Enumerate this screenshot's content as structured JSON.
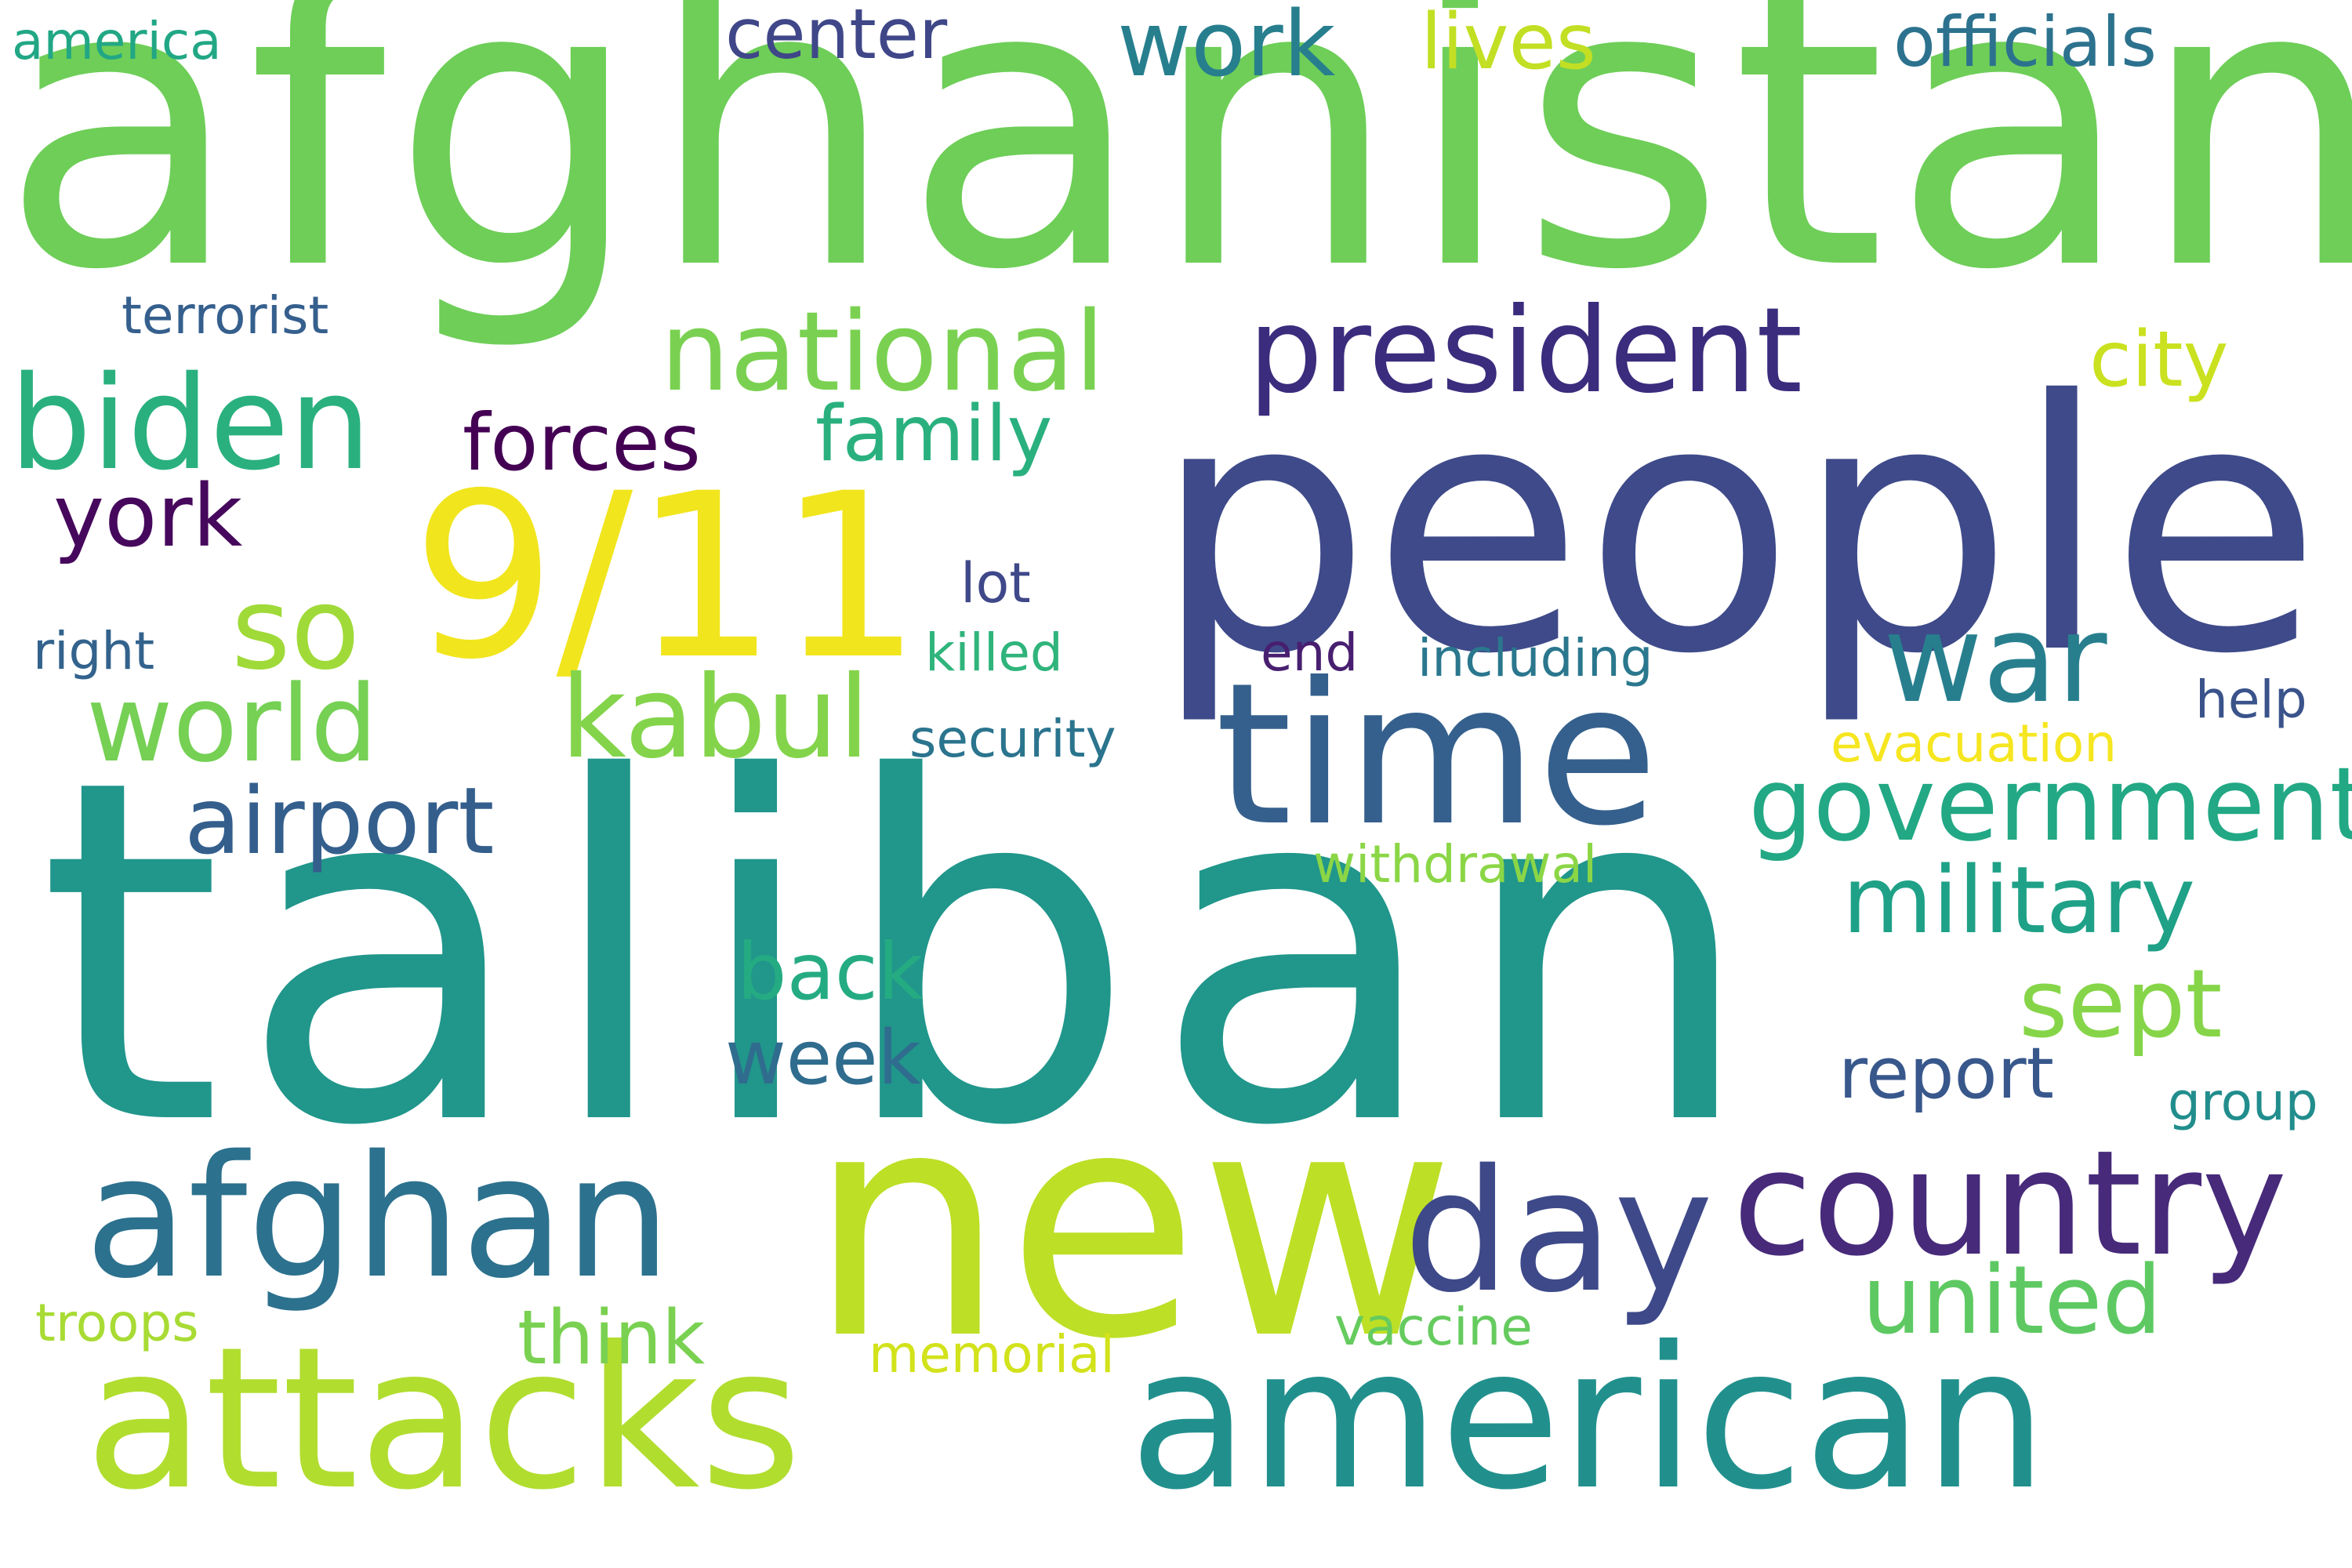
{
  "words": [
    {
      "text": "afghanistan",
      "color": "#6ece58"
    },
    {
      "text": "taliban",
      "color": "#21968b"
    },
    {
      "text": "people",
      "color": "#3e4a89"
    },
    {
      "text": "new",
      "color": "#bddf26"
    },
    {
      "text": "time",
      "color": "#35608d"
    },
    {
      "text": "attacks",
      "color": "#b1dd2f"
    },
    {
      "text": "american",
      "color": "#21908d"
    },
    {
      "text": "9/11",
      "color": "#f1e51d"
    },
    {
      "text": "president",
      "color": "#3b2c7d"
    },
    {
      "text": "biden",
      "color": "#2ab07f"
    },
    {
      "text": "afghan",
      "color": "#2c718e"
    },
    {
      "text": "country",
      "color": "#472a7a"
    },
    {
      "text": "day",
      "color": "#3e4989"
    },
    {
      "text": "national",
      "color": "#7ad151"
    },
    {
      "text": "war",
      "color": "#277f8e"
    },
    {
      "text": "kabul",
      "color": "#84d44b"
    },
    {
      "text": "world",
      "color": "#75d054"
    },
    {
      "text": "government",
      "color": "#22a884"
    },
    {
      "text": "military",
      "color": "#1fa187"
    },
    {
      "text": "airport",
      "color": "#345f8d"
    },
    {
      "text": "so",
      "color": "#a0da39"
    },
    {
      "text": "united",
      "color": "#5ec962"
    },
    {
      "text": "sept",
      "color": "#86d549"
    },
    {
      "text": "work",
      "color": "#277f8e"
    },
    {
      "text": "forces",
      "color": "#440154"
    },
    {
      "text": "york",
      "color": "#46085c"
    },
    {
      "text": "back",
      "color": "#25ab82"
    },
    {
      "text": "report",
      "color": "#38588c"
    },
    {
      "text": "week",
      "color": "#2f6c8e"
    },
    {
      "text": "think",
      "color": "#7ad151"
    },
    {
      "text": "family",
      "color": "#2ab07f"
    },
    {
      "text": "city",
      "color": "#cae11f"
    },
    {
      "text": "lives",
      "color": "#c2df23"
    },
    {
      "text": "center",
      "color": "#3f4788"
    },
    {
      "text": "officials",
      "color": "#2c728e"
    },
    {
      "text": "terrorist",
      "color": "#355f8d"
    },
    {
      "text": "america",
      "color": "#22a785"
    },
    {
      "text": "right",
      "color": "#33638d"
    },
    {
      "text": "lot",
      "color": "#3f4889"
    },
    {
      "text": "killed",
      "color": "#2fb47c"
    },
    {
      "text": "end",
      "color": "#481f70"
    },
    {
      "text": "including",
      "color": "#2a778e"
    },
    {
      "text": "help",
      "color": "#3a538b"
    },
    {
      "text": "security",
      "color": "#2b748e"
    },
    {
      "text": "evacuation",
      "color": "#f6e620"
    },
    {
      "text": "withdrawal",
      "color": "#8bd646"
    },
    {
      "text": "group",
      "color": "#228d8d"
    },
    {
      "text": "troops",
      "color": "#a8db34"
    },
    {
      "text": "memorial",
      "color": "#d2e21b"
    },
    {
      "text": "vaccine",
      "color": "#65cb5e"
    }
  ]
}
